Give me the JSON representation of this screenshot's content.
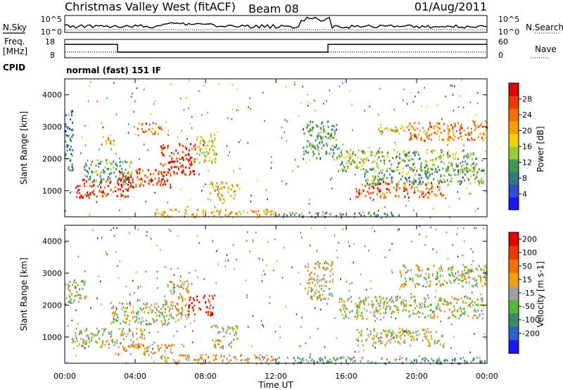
{
  "header": {
    "station": "Christmas Valley West (fitACF)",
    "beam": "Beam 08",
    "date": "01/Aug/2011"
  },
  "panels": {
    "nsky_label": "N.Sky",
    "nsearch_label": "N.Search",
    "freq_label_line1": "Freq.",
    "freq_label_line2": "[MHz]",
    "nave_label": "Nave",
    "cpid_label": "CPID",
    "cpid_text": "normal (fast) 151 IF",
    "noise_left_ticks": [
      "10^5",
      "10^0"
    ],
    "noise_right_ticks": [
      "10^5",
      "10^0"
    ],
    "freq_left_ticks": [
      "18",
      "8"
    ],
    "freq_right_ticks": [
      "60",
      "0"
    ]
  },
  "chart_data": [
    {
      "type": "heatmap",
      "name": "power",
      "ylabel": "Slant Range [km]",
      "xlabel": "Time UT",
      "xlim": [
        0,
        24
      ],
      "ylim": [
        180,
        4500
      ],
      "yticks": [
        "1000",
        "2000",
        "3000",
        "4000"
      ],
      "colorbar_label": "Power [dB]",
      "colorbar_ticks": [
        "4",
        "8",
        "12",
        "16",
        "20",
        "24",
        "28"
      ],
      "colors": [
        "#1a14ff",
        "#2b4fd1",
        "#347a7a",
        "#3f9a55",
        "#9acd32",
        "#f0d000",
        "#f5a000",
        "#f07000",
        "#ec3a00",
        "#e00000"
      ],
      "regions": [
        {
          "t0": 0.0,
          "t1": 0.45,
          "r0": 1600,
          "r1": 3600,
          "level": 0.25
        },
        {
          "t0": 0.6,
          "t1": 3.6,
          "r0": 800,
          "r1": 1400,
          "level": 0.9
        },
        {
          "t0": 1.0,
          "t1": 3.8,
          "r0": 1300,
          "r1": 2000,
          "level": 0.35
        },
        {
          "t0": 3.0,
          "t1": 6.0,
          "r0": 1100,
          "r1": 1700,
          "level": 0.85
        },
        {
          "t0": 5.4,
          "t1": 7.4,
          "r0": 1500,
          "r1": 2500,
          "level": 0.9
        },
        {
          "t0": 4.1,
          "t1": 5.5,
          "r0": 2800,
          "r1": 3150,
          "level": 0.75
        },
        {
          "t0": 2.3,
          "t1": 2.8,
          "r0": 2300,
          "r1": 2700,
          "level": 0.7
        },
        {
          "t0": 7.3,
          "t1": 8.6,
          "r0": 1900,
          "r1": 2800,
          "level": 0.5
        },
        {
          "t0": 8.2,
          "t1": 9.8,
          "r0": 700,
          "r1": 1300,
          "level": 0.55
        },
        {
          "t0": 5.0,
          "t1": 12.0,
          "r0": 190,
          "r1": 450,
          "level": 0.6
        },
        {
          "t0": 12.0,
          "t1": 19.0,
          "r0": 190,
          "r1": 350,
          "level": 0.3
        },
        {
          "t0": 13.5,
          "t1": 15.5,
          "r0": 2000,
          "r1": 3200,
          "level": 0.35
        },
        {
          "t0": 15.5,
          "t1": 23.5,
          "r0": 1600,
          "r1": 2300,
          "level": 0.4
        },
        {
          "t0": 16.5,
          "t1": 21.5,
          "r0": 800,
          "r1": 1300,
          "level": 0.8
        },
        {
          "t0": 17.0,
          "t1": 23.8,
          "r0": 1200,
          "r1": 1700,
          "level": 0.35
        },
        {
          "t0": 19.5,
          "t1": 24.0,
          "r0": 2600,
          "r1": 3200,
          "level": 0.7
        },
        {
          "t0": 17.8,
          "t1": 19.5,
          "r0": 2800,
          "r1": 3100,
          "level": 0.55
        }
      ]
    },
    {
      "type": "heatmap",
      "name": "velocity",
      "ylabel": "Slant Range [km]",
      "xlabel": "Time UT",
      "xlim": [
        0,
        24
      ],
      "ylim": [
        180,
        4500
      ],
      "yticks": [
        "1000",
        "2000",
        "3000",
        "4000"
      ],
      "xticks": [
        "00:00",
        "04:00",
        "08:00",
        "12:00",
        "16:00",
        "20:00",
        "00:00"
      ],
      "colorbar_label": "Velocity [m s-1]",
      "colorbar_ticks": [
        "200",
        "100",
        "50",
        "15",
        "-15",
        "-50",
        "-100",
        "-200"
      ],
      "colors": [
        "#1a14ff",
        "#2a60c8",
        "#3c8a6a",
        "#55b83a",
        "#a0a0a0",
        "#f0a000",
        "#f07000",
        "#ec3a00",
        "#e00000"
      ],
      "regions": [
        {
          "t0": 0.0,
          "t1": 1.2,
          "r0": 2100,
          "r1": 2800,
          "level": 0.5
        },
        {
          "t0": 0.4,
          "t1": 4.5,
          "r0": 700,
          "r1": 1300,
          "level": 0.5
        },
        {
          "t0": 2.5,
          "t1": 6.0,
          "r0": 1400,
          "r1": 2100,
          "level": 0.5
        },
        {
          "t0": 3.0,
          "t1": 6.2,
          "r0": 480,
          "r1": 800,
          "level": 0.62
        },
        {
          "t0": 5.6,
          "t1": 7.0,
          "r0": 1500,
          "r1": 2800,
          "level": 0.55
        },
        {
          "t0": 7.0,
          "t1": 8.5,
          "r0": 1700,
          "r1": 2350,
          "level": 0.9
        },
        {
          "t0": 8.3,
          "t1": 9.8,
          "r0": 700,
          "r1": 1400,
          "level": 0.5
        },
        {
          "t0": 5.4,
          "t1": 12.0,
          "r0": 190,
          "r1": 480,
          "level": 0.6
        },
        {
          "t0": 12.0,
          "t1": 24.0,
          "r0": 190,
          "r1": 400,
          "level": 0.35
        },
        {
          "t0": 15.5,
          "t1": 23.8,
          "r0": 1600,
          "r1": 2300,
          "level": 0.5
        },
        {
          "t0": 16.5,
          "t1": 21.5,
          "r0": 750,
          "r1": 1300,
          "level": 0.5
        },
        {
          "t0": 19.0,
          "t1": 24.0,
          "r0": 2600,
          "r1": 3300,
          "level": 0.5
        },
        {
          "t0": 13.6,
          "t1": 15.2,
          "r0": 2200,
          "r1": 3400,
          "level": 0.5
        }
      ]
    }
  ]
}
